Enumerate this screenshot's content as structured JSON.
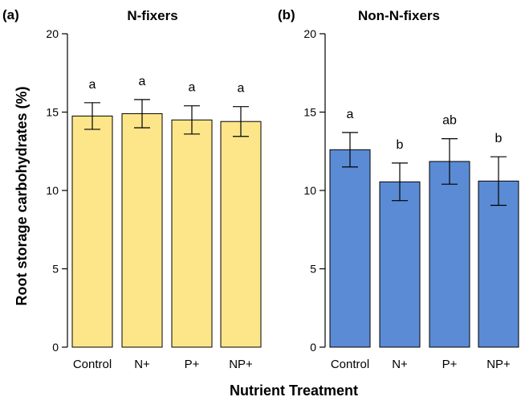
{
  "chart_data": [
    {
      "type": "bar",
      "panel_tag": "(a)",
      "title": "N-fixers",
      "categories": [
        "Control",
        "N+",
        "P+",
        "NP+"
      ],
      "values": [
        14.75,
        14.9,
        14.5,
        14.4
      ],
      "errors": [
        0.85,
        0.9,
        0.9,
        0.95
      ],
      "significance": [
        "a",
        "a",
        "a",
        "a"
      ],
      "ylim": [
        0,
        20
      ],
      "yticks": [
        0,
        5,
        10,
        15,
        20
      ],
      "color": "#fde68a"
    },
    {
      "type": "bar",
      "panel_tag": "(b)",
      "title": "Non-N-fixers",
      "categories": [
        "Control",
        "N+",
        "P+",
        "NP+"
      ],
      "values": [
        12.6,
        10.55,
        11.85,
        10.6
      ],
      "errors": [
        1.1,
        1.2,
        1.45,
        1.55
      ],
      "significance": [
        "a",
        "b",
        "ab",
        "b"
      ],
      "ylim": [
        0,
        20
      ],
      "yticks": [
        0,
        5,
        10,
        15,
        20
      ],
      "color": "#5b8bd4"
    }
  ],
  "ylabel": "Root storage carbohydrates (%)",
  "xlabel": "Nutrient Treatment"
}
